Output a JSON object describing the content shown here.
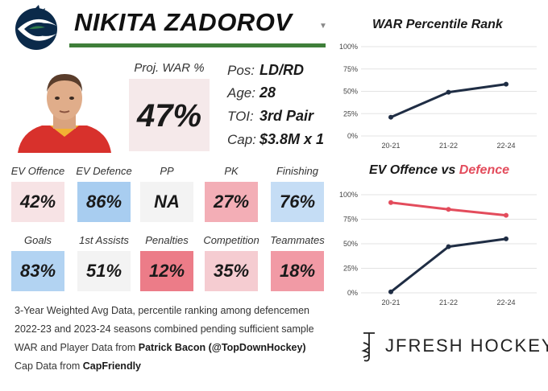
{
  "player": {
    "name": "NIKITA ZADOROV",
    "proj_war_label": "Proj. WAR %",
    "proj_war_value": "47%"
  },
  "info": [
    {
      "key": "Pos:",
      "value": "LD/RD"
    },
    {
      "key": "Age:",
      "value": "28"
    },
    {
      "key": "TOI:",
      "value": "3rd Pair"
    },
    {
      "key": "Cap:",
      "value": "$3.8M x 1"
    }
  ],
  "stats": [
    {
      "label": "EV Offence",
      "value": "42%",
      "color": "#f7e3e5"
    },
    {
      "label": "EV Defence",
      "value": "86%",
      "color": "#a8cdf0"
    },
    {
      "label": "PP",
      "value": "NA",
      "color": "#f3f3f3"
    },
    {
      "label": "PK",
      "value": "27%",
      "color": "#f3aeb6"
    },
    {
      "label": "Finishing",
      "value": "76%",
      "color": "#c5ddf5"
    },
    {
      "label": "Goals",
      "value": "83%",
      "color": "#b2d3f2"
    },
    {
      "label": "1st Assists",
      "value": "51%",
      "color": "#f3f3f3"
    },
    {
      "label": "Penalties",
      "value": "12%",
      "color": "#ec7c88"
    },
    {
      "label": "Competition",
      "value": "35%",
      "color": "#f5ccd1"
    },
    {
      "label": "Teammates",
      "value": "18%",
      "color": "#f19aa5"
    }
  ],
  "footer": {
    "line1": "3-Year Weighted Avg Data, percentile ranking among defencemen",
    "line2": "2022-23 and 2023-24 seasons combined pending sufficient sample",
    "line3_prefix": "WAR and Player Data from ",
    "line3_bold": "Patrick Bacon (@TopDownHockey)",
    "line4_prefix": "Cap Data from ",
    "line4_bold": "CapFriendly"
  },
  "brand": {
    "name": "JFRESH HOCKEY"
  },
  "colors": {
    "navy": "#1f2d44",
    "red": "#e34c5c",
    "green": "#3f7f3a"
  },
  "chart_data": [
    {
      "type": "line",
      "title": "WAR Percentile Rank",
      "categories": [
        "20-21",
        "21-22",
        "22-24"
      ],
      "series": [
        {
          "values": [
            21,
            49,
            58
          ],
          "color": "#1f2d44"
        }
      ],
      "ylim": [
        0,
        100
      ],
      "yticks": [
        "0%",
        "25%",
        "50%",
        "75%",
        "100%"
      ],
      "grid": true,
      "legend": "none"
    },
    {
      "type": "line",
      "title_part1": "EV Offence vs ",
      "title_part2": "Defence",
      "categories": [
        "20-21",
        "21-22",
        "22-24"
      ],
      "series": [
        {
          "values": [
            1,
            47,
            55
          ],
          "color": "#1f2d44"
        },
        {
          "values": [
            92,
            85,
            79
          ],
          "color": "#e34c5c"
        }
      ],
      "ylim": [
        0,
        100
      ],
      "yticks": [
        "0%",
        "25%",
        "50%",
        "75%",
        "100%"
      ],
      "grid": true,
      "legend": "none"
    }
  ]
}
